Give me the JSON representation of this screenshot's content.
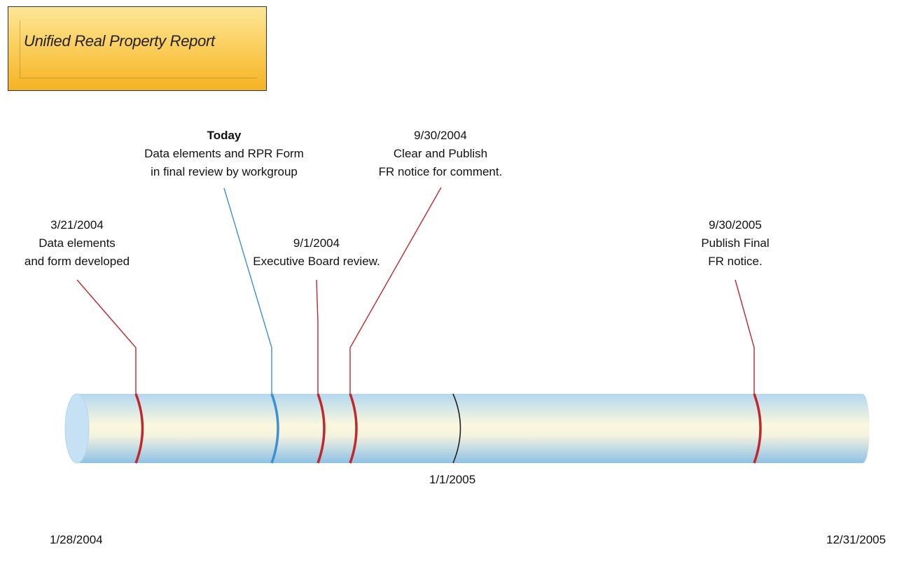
{
  "title": "Unified Real Property Report",
  "milestones": {
    "m1": {
      "date": "3/21/2004",
      "line2": "Data elements",
      "line3": "and form developed"
    },
    "m2": {
      "date": "Today",
      "line2": "Data elements and RPR Form",
      "line3": "in final review by workgroup"
    },
    "m3": {
      "date": "9/1/2004",
      "line2": "Executive Board review."
    },
    "m4": {
      "date": "9/30/2004",
      "line2": "Clear and Publish",
      "line3": "FR notice for comment."
    },
    "m5": {
      "date": "9/30/2005",
      "line2": "Publish Final",
      "line3": "FR notice."
    }
  },
  "year_marker": "1/1/2005",
  "start_date": "1/28/2004",
  "end_date": "12/31/2005",
  "colors": {
    "milestone": "#c0282a",
    "today": "#3d8fd6",
    "year_marker": "#222222",
    "title_box": "#fbd060"
  }
}
